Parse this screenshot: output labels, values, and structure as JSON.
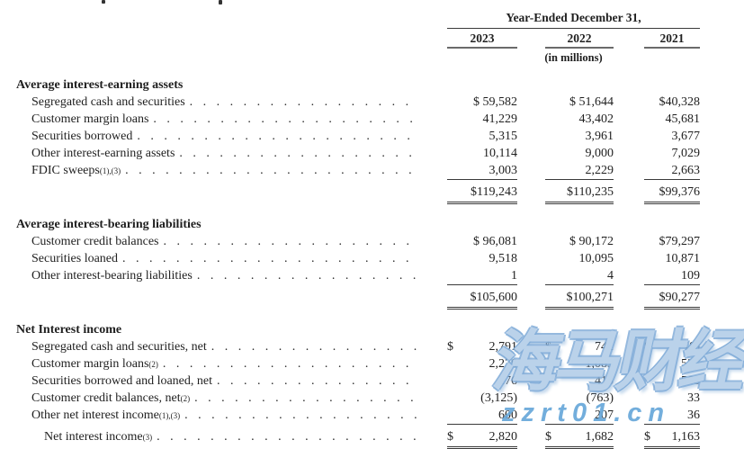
{
  "table": {
    "header": {
      "title": "Year-Ended December 31,",
      "years": [
        "2023",
        "2022",
        "2021"
      ],
      "unit_note": "(in millions)"
    },
    "sections": [
      {
        "name": "Average interest-earning assets",
        "rows": [
          {
            "label": "Segregated cash and securities",
            "sup": "",
            "values": [
              {
                "cur": "",
                "val": "$ 59,582"
              },
              {
                "cur": "",
                "val": "$ 51,644"
              },
              {
                "cur": "",
                "val": "$40,328"
              }
            ]
          },
          {
            "label": "Customer margin loans",
            "sup": "",
            "values": [
              {
                "cur": "",
                "val": "41,229"
              },
              {
                "cur": "",
                "val": "43,402"
              },
              {
                "cur": "",
                "val": "45,681"
              }
            ]
          },
          {
            "label": "Securities borrowed",
            "sup": "",
            "values": [
              {
                "cur": "",
                "val": "5,315"
              },
              {
                "cur": "",
                "val": "3,961"
              },
              {
                "cur": "",
                "val": "3,677"
              }
            ]
          },
          {
            "label": "Other interest-earning assets",
            "sup": "",
            "values": [
              {
                "cur": "",
                "val": "10,114"
              },
              {
                "cur": "",
                "val": "9,000"
              },
              {
                "cur": "",
                "val": "7,029"
              }
            ]
          },
          {
            "label": "FDIC sweeps",
            "sup": "(1),(3)",
            "values": [
              {
                "cur": "",
                "val": "3,003"
              },
              {
                "cur": "",
                "val": "2,229"
              },
              {
                "cur": "",
                "val": "2,663"
              }
            ]
          }
        ],
        "total": {
          "label": "",
          "sup": "",
          "values": [
            {
              "cur": "",
              "val": "$119,243"
            },
            {
              "cur": "",
              "val": "$110,235"
            },
            {
              "cur": "",
              "val": "$99,376"
            }
          ]
        }
      },
      {
        "name": "Average interest-bearing liabilities",
        "rows": [
          {
            "label": "Customer credit balances",
            "sup": "",
            "values": [
              {
                "cur": "",
                "val": "$ 96,081"
              },
              {
                "cur": "",
                "val": "$ 90,172"
              },
              {
                "cur": "",
                "val": "$79,297"
              }
            ]
          },
          {
            "label": "Securities loaned",
            "sup": "",
            "values": [
              {
                "cur": "",
                "val": "9,518"
              },
              {
                "cur": "",
                "val": "10,095"
              },
              {
                "cur": "",
                "val": "10,871"
              }
            ]
          },
          {
            "label": "Other interest-bearing liabilities",
            "sup": "",
            "values": [
              {
                "cur": "",
                "val": "1"
              },
              {
                "cur": "",
                "val": "4"
              },
              {
                "cur": "",
                "val": "109"
              }
            ]
          }
        ],
        "total": {
          "label": "",
          "sup": "",
          "values": [
            {
              "cur": "",
              "val": "$105,600"
            },
            {
              "cur": "",
              "val": "$100,271"
            },
            {
              "cur": "",
              "val": "$90,277"
            }
          ]
        }
      },
      {
        "name": "Net Interest income",
        "rows": [
          {
            "label": "Segregated cash and securities, net",
            "sup": "",
            "values": [
              {
                "cur": "$",
                "val": "2,791"
              },
              {
                "cur": "$",
                "val": "742"
              },
              {
                "cur": "$",
                "val": "(9)"
              }
            ]
          },
          {
            "label": "Customer margin loans",
            "sup": "(2)",
            "values": [
              {
                "cur": "",
                "val": "2,278"
              },
              {
                "cur": "",
                "val": "1,083"
              },
              {
                "cur": "",
                "val": "535"
              }
            ]
          },
          {
            "label": "Securities borrowed and loaned, net",
            "sup": "",
            "values": [
              {
                "cur": "",
                "val": "276"
              },
              {
                "cur": "",
                "val": "413"
              },
              {
                "cur": "",
                "val": "568"
              }
            ]
          },
          {
            "label": "Customer credit balances, net",
            "sup": "(2)",
            "values": [
              {
                "cur": "",
                "val": "(3,125)"
              },
              {
                "cur": "",
                "val": "(763)"
              },
              {
                "cur": "",
                "val": "33"
              }
            ]
          },
          {
            "label": "Other net interest income",
            "sup": "(1),(3)",
            "values": [
              {
                "cur": "",
                "val": "600"
              },
              {
                "cur": "",
                "val": "207"
              },
              {
                "cur": "",
                "val": "36"
              }
            ]
          }
        ],
        "total": {
          "label": "Net interest income",
          "sup": "(3)",
          "values": [
            {
              "cur": "$",
              "val": "2,820"
            },
            {
              "cur": "$",
              "val": "1,682"
            },
            {
              "cur": "$",
              "val": "1,163"
            }
          ]
        }
      }
    ]
  },
  "watermark": {
    "text": "海马财经",
    "url": "zzrt01.cn",
    "blue": "#68a8da"
  },
  "colors": {
    "text": "#1f1f1f",
    "rule": "#3a3a3a",
    "background": "#ffffff"
  }
}
